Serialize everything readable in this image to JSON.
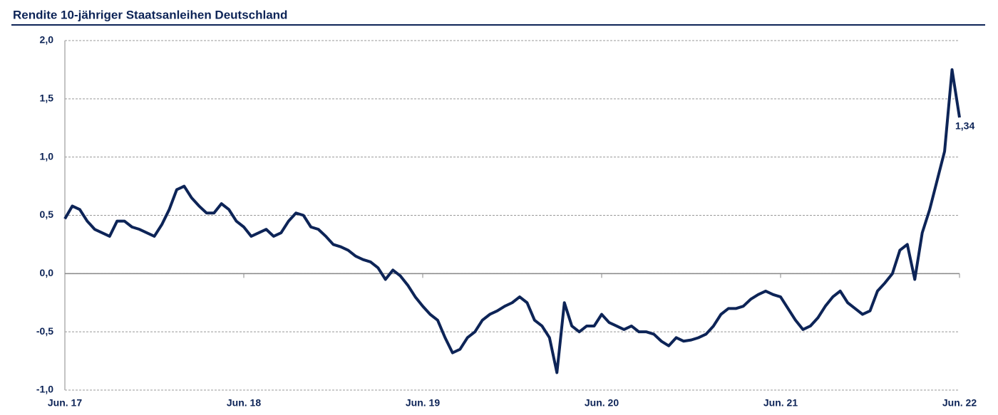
{
  "chart_data": {
    "type": "line",
    "title": "Rendite 10-jähriger Staatsanleihen Deutschland",
    "categories": [
      "Jun. 17",
      null,
      null,
      null,
      null,
      null,
      null,
      null,
      null,
      null,
      null,
      null,
      null,
      null,
      null,
      null,
      null,
      null,
      null,
      null,
      null,
      null,
      null,
      null,
      "Jun. 18",
      null,
      null,
      null,
      null,
      null,
      null,
      null,
      null,
      null,
      null,
      null,
      null,
      null,
      null,
      null,
      null,
      null,
      null,
      null,
      null,
      null,
      null,
      null,
      "Jun. 19",
      null,
      null,
      null,
      null,
      null,
      null,
      null,
      null,
      null,
      null,
      null,
      null,
      null,
      null,
      null,
      null,
      null,
      null,
      null,
      null,
      null,
      null,
      null,
      "Jun. 20",
      null,
      null,
      null,
      null,
      null,
      null,
      null,
      null,
      null,
      null,
      null,
      null,
      null,
      null,
      null,
      null,
      null,
      null,
      null,
      null,
      null,
      null,
      null,
      "Jun. 21",
      null,
      null,
      null,
      null,
      null,
      null,
      null,
      null,
      null,
      null,
      null,
      null,
      null,
      null,
      null,
      null,
      null,
      null,
      null,
      null,
      null,
      null,
      null,
      "Jun. 22"
    ],
    "series": [
      {
        "name": "Rendite",
        "color": "#0d2457",
        "values": [
          0.47,
          0.58,
          0.55,
          0.45,
          0.38,
          0.35,
          0.32,
          0.45,
          0.45,
          0.4,
          0.38,
          0.35,
          0.32,
          0.42,
          0.55,
          0.72,
          0.75,
          0.65,
          0.58,
          0.52,
          0.52,
          0.6,
          0.55,
          0.45,
          0.4,
          0.32,
          0.35,
          0.38,
          0.32,
          0.35,
          0.45,
          0.52,
          0.5,
          0.4,
          0.38,
          0.32,
          0.25,
          0.23,
          0.2,
          0.15,
          0.12,
          0.1,
          0.05,
          -0.05,
          0.03,
          -0.02,
          -0.1,
          -0.2,
          -0.28,
          -0.35,
          -0.4,
          -0.55,
          -0.68,
          -0.65,
          -0.55,
          -0.5,
          -0.4,
          -0.35,
          -0.32,
          -0.28,
          -0.25,
          -0.2,
          -0.25,
          -0.4,
          -0.45,
          -0.55,
          -0.85,
          -0.25,
          -0.45,
          -0.5,
          -0.45,
          -0.45,
          -0.35,
          -0.42,
          -0.45,
          -0.48,
          -0.45,
          -0.5,
          -0.5,
          -0.52,
          -0.58,
          -0.62,
          -0.55,
          -0.58,
          -0.57,
          -0.55,
          -0.52,
          -0.45,
          -0.35,
          -0.3,
          -0.3,
          -0.28,
          -0.22,
          -0.18,
          -0.15,
          -0.18,
          -0.2,
          -0.3,
          -0.4,
          -0.48,
          -0.45,
          -0.38,
          -0.28,
          -0.2,
          -0.15,
          -0.25,
          -0.3,
          -0.35,
          -0.32,
          -0.15,
          -0.08,
          0.0,
          0.2,
          0.25,
          -0.05,
          0.35,
          0.55,
          0.8,
          1.05,
          1.75,
          1.34
        ],
        "value_labels": [
          null,
          null,
          null,
          null,
          null,
          null,
          null,
          null,
          null,
          null,
          null,
          null,
          null,
          null,
          null,
          null,
          null,
          null,
          null,
          null,
          null,
          null,
          null,
          null,
          null,
          null,
          null,
          null,
          null,
          null,
          null,
          null,
          null,
          null,
          null,
          null,
          null,
          null,
          null,
          null,
          null,
          null,
          null,
          null,
          null,
          null,
          null,
          null,
          null,
          null,
          null,
          null,
          null,
          null,
          null,
          null,
          null,
          null,
          null,
          null,
          null,
          null,
          null,
          null,
          null,
          null,
          null,
          null,
          null,
          null,
          null,
          null,
          null,
          null,
          null,
          null,
          null,
          null,
          null,
          null,
          null,
          null,
          null,
          null,
          null,
          null,
          null,
          null,
          null,
          null,
          null,
          null,
          null,
          null,
          null,
          null,
          null,
          null,
          null,
          null,
          null,
          null,
          null,
          null,
          null,
          null,
          null,
          null,
          null,
          null,
          null,
          null,
          null,
          null,
          null,
          null,
          null,
          null,
          null,
          null,
          "1,34"
        ]
      }
    ],
    "ylim": [
      -1,
      2
    ],
    "yticks": [
      {
        "value": -1,
        "label": "-1,0"
      },
      {
        "value": -0.5,
        "label": "-0,5"
      },
      {
        "value": 0,
        "label": "0,0"
      },
      {
        "value": 0.5,
        "label": "0,5"
      },
      {
        "value": 1,
        "label": "1,0"
      },
      {
        "value": 1.5,
        "label": "1,5"
      },
      {
        "value": 2,
        "label": "2,0"
      }
    ],
    "grid": true
  }
}
